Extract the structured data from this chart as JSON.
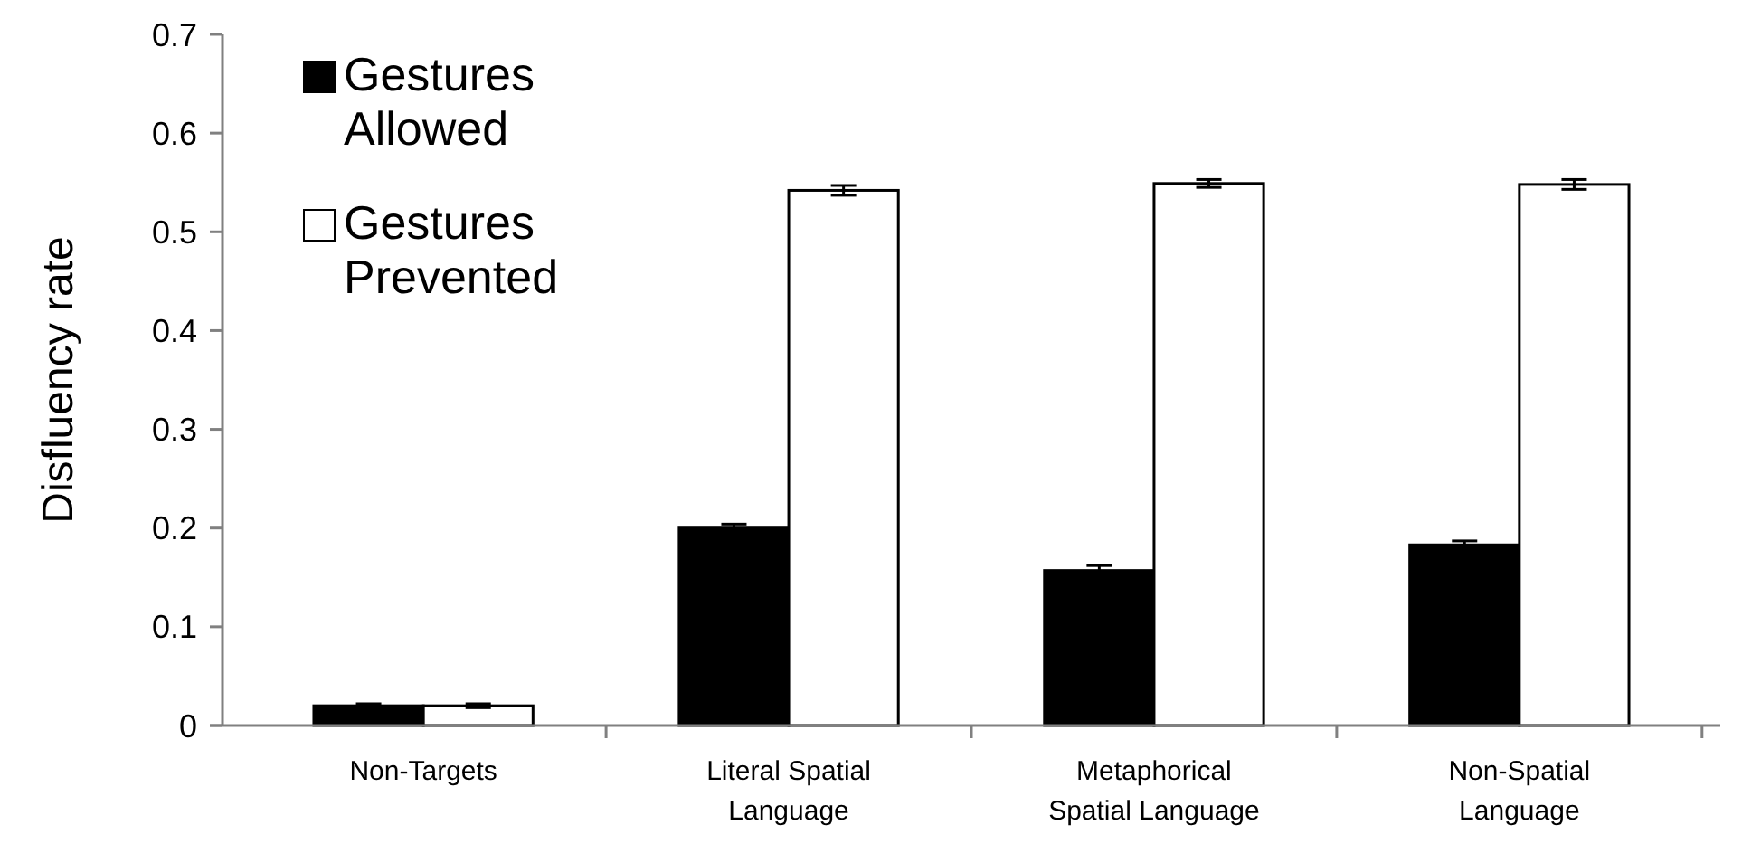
{
  "chart_data": {
    "type": "bar",
    "ylabel": "Disfluency rate",
    "categories": [
      "Non-Targets",
      "Literal Spatial Language",
      "Metaphorical Spatial Language",
      "Non-Spatial Language"
    ],
    "series": [
      {
        "name": "Gestures Allowed",
        "color": "#000000",
        "values": [
          0.02,
          0.2,
          0.157,
          0.183
        ],
        "errors": [
          0.002,
          0.004,
          0.005,
          0.004
        ]
      },
      {
        "name": "Gestures Prevented",
        "color": "#ffffff",
        "values": [
          0.02,
          0.542,
          0.549,
          0.548
        ],
        "errors": [
          0.002,
          0.005,
          0.004,
          0.005
        ]
      }
    ],
    "ylim": [
      0,
      0.7
    ],
    "yticks": [
      0,
      0.1,
      0.2,
      0.3,
      0.4,
      0.5,
      0.6,
      0.7
    ],
    "legend": "top left",
    "grid": false
  }
}
